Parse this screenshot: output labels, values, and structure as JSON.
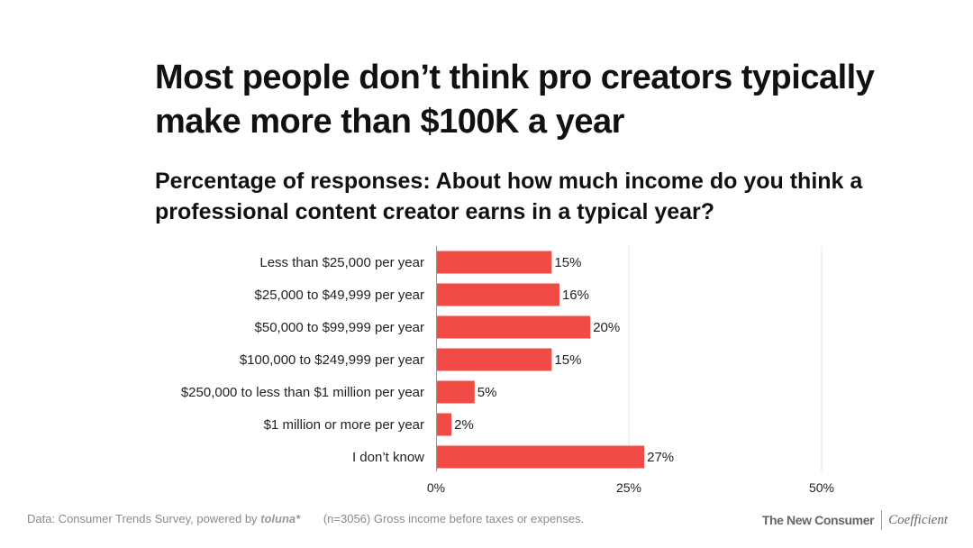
{
  "title": "Most people don’t think pro creators typically make more than $100K a year",
  "chart_data": {
    "type": "bar",
    "orientation": "horizontal",
    "title": "Most people don’t think pro creators typically make more than $100K a year",
    "subtitle": "Percentage of responses: About how much income do you think a professional content creator earns in a typical year?",
    "categories": [
      "Less than $25,000 per year",
      "$25,000 to $49,999 per year",
      "$50,000 to $99,999 per year",
      "$100,000 to $249,999 per year",
      "$250,000 to less than $1 million per year",
      "$1 million or more per year",
      "I don’t know"
    ],
    "values": [
      15,
      16,
      20,
      15,
      5,
      2,
      27
    ],
    "value_labels": [
      "15%",
      "16%",
      "20%",
      "15%",
      "5%",
      "2%",
      "27%"
    ],
    "xlim": [
      0,
      50
    ],
    "xticks": [
      0,
      25,
      50
    ],
    "xtick_labels": [
      "0%",
      "25%",
      "50%"
    ],
    "xlabel": "",
    "ylabel": "",
    "grid": true,
    "bar_color": "#f24a45",
    "grid_color": "#e6e6e6",
    "axis_color": "#999999"
  },
  "footer": {
    "source_prefix": "Data: Consumer Trends Survey, powered by ",
    "source_brand": "toluna*",
    "note": "(n=3056) Gross income before taxes or expenses."
  },
  "branding": {
    "publisher": "The New Consumer",
    "partner": "Coefficient"
  }
}
